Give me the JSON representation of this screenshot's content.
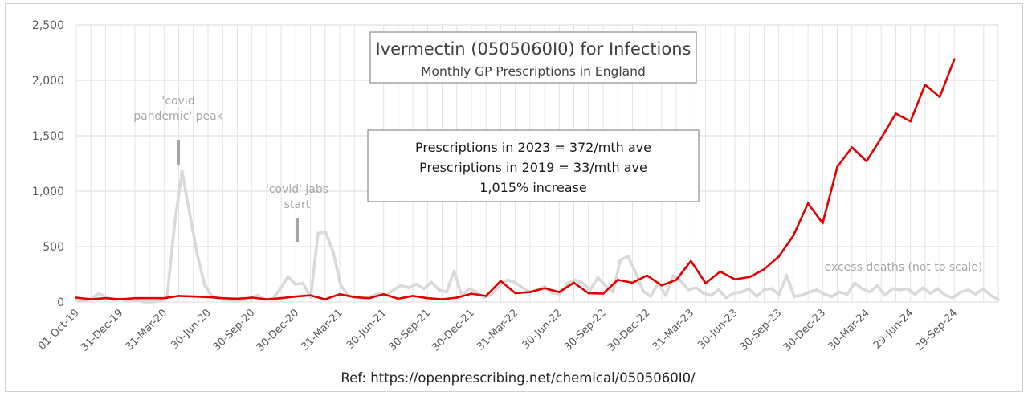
{
  "chart_data": {
    "type": "line",
    "title": "Ivermectin (0505060I0) for Infections",
    "subtitle": "Monthly GP Prescriptions in England",
    "ylim": [
      0,
      2500
    ],
    "yticks": [
      0,
      500,
      1000,
      1500,
      2000,
      2500
    ],
    "ytick_labels": [
      "0",
      "500",
      "1,000",
      "1,500",
      "2,000",
      "2,500"
    ],
    "x_tick_labels": [
      "01-Oct-19",
      "31-Dec-19",
      "31-Mar-20",
      "30-Jun-20",
      "30-Sep-20",
      "30-Dec-20",
      "31-Mar-21",
      "30-Jun-21",
      "30-Sep-21",
      "30-Dec-21",
      "31-Mar-22",
      "30-Jun-22",
      "30-Sep-22",
      "30-Dec-22",
      "31-Mar-23",
      "30-Jun-23",
      "30-Sep-23",
      "30-Dec-23",
      "30-Mar-24",
      "29-Jun-24",
      "29-Sep-24"
    ],
    "x_months": 63,
    "series": [
      {
        "name": "Monthly GP Prescriptions",
        "color": "#e00000",
        "values": [
          40,
          25,
          35,
          25,
          35,
          35,
          35,
          55,
          50,
          45,
          35,
          30,
          40,
          25,
          35,
          50,
          60,
          25,
          70,
          45,
          35,
          70,
          30,
          55,
          35,
          25,
          40,
          75,
          55,
          190,
          80,
          90,
          125,
          90,
          175,
          80,
          75,
          200,
          175,
          240,
          150,
          200,
          370,
          170,
          275,
          205,
          225,
          295,
          410,
          600,
          890,
          710,
          1220,
          1395,
          1270,
          1480,
          1700,
          1630,
          1960,
          1850,
          2190
        ]
      },
      {
        "name": "excess deaths (not to scale)",
        "color": "#d9d9d9",
        "values": [
          20,
          10,
          30,
          80,
          40,
          20,
          30,
          10,
          15,
          0,
          0,
          10,
          40,
          700,
          1180,
          800,
          430,
          150,
          50,
          30,
          20,
          10,
          20,
          30,
          60,
          20,
          30,
          120,
          230,
          160,
          170,
          40,
          620,
          630,
          450,
          150,
          60,
          40,
          30,
          50,
          80,
          60,
          110,
          150,
          130,
          160,
          120,
          180,
          110,
          90,
          280,
          60,
          120,
          90,
          40,
          70,
          150,
          200,
          180,
          130,
          90,
          110,
          140,
          80,
          70,
          170,
          200,
          170,
          110,
          220,
          150,
          90,
          380,
          410,
          270,
          100,
          50,
          170,
          60,
          240,
          190,
          110,
          130,
          80,
          60,
          110,
          40,
          80,
          90,
          120,
          50,
          110,
          120,
          70,
          240,
          50,
          60,
          90,
          110,
          70,
          50,
          90,
          70,
          170,
          120,
          90,
          150,
          60,
          120,
          110,
          120,
          70,
          130,
          80,
          120,
          60,
          40,
          90,
          110,
          70,
          120,
          60,
          20
        ]
      }
    ],
    "stats_box": [
      "Prescriptions in 2023 = 372/mth ave",
      "Prescriptions in 2019 = 33/mth ave",
      "1,015% increase"
    ],
    "annotations": [
      {
        "lines": [
          "'covid",
          "pandemic' peak"
        ]
      },
      {
        "lines": [
          "'covid' jabs",
          "start"
        ]
      },
      {
        "lines": [
          "excess deaths (not to scale)"
        ]
      }
    ],
    "reference": "Ref: https://openprescribing.net/chemical/0505060I0/"
  }
}
